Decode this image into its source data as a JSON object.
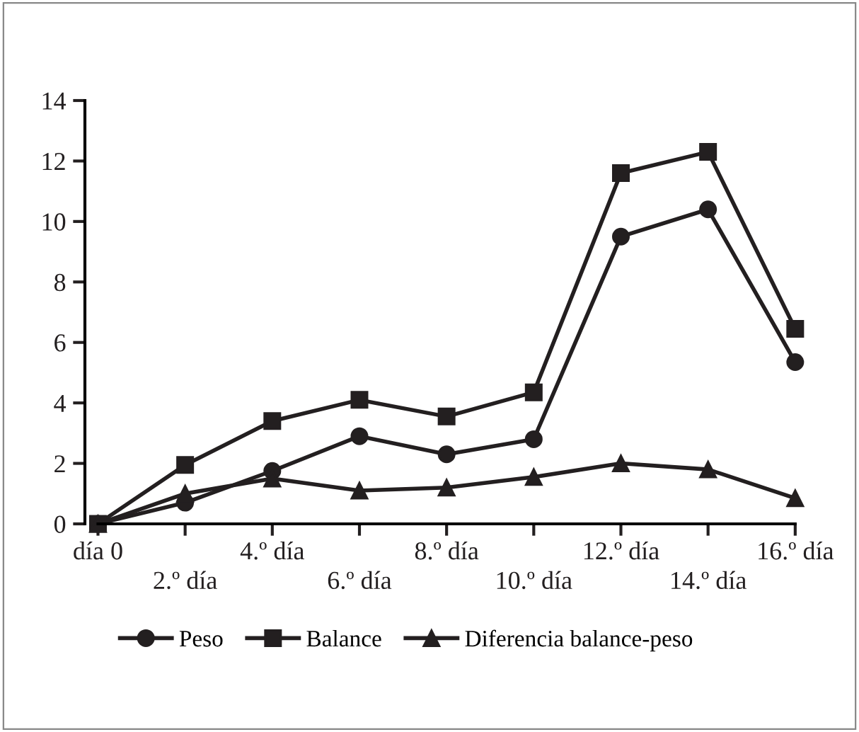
{
  "chart_data": {
    "type": "line",
    "categories": [
      "día 0",
      "2.º día",
      "4.º día",
      "6.º día",
      "8.º día",
      "10.º día",
      "12.º día",
      "14.º día",
      "16.º día"
    ],
    "series": [
      {
        "name": "Peso",
        "color": "#231f20",
        "marker": "circle",
        "values": [
          0,
          0.7,
          1.75,
          2.9,
          2.3,
          2.8,
          9.5,
          10.4,
          5.35
        ]
      },
      {
        "name": "Balance",
        "color": "#231f20",
        "marker": "square",
        "values": [
          0,
          1.95,
          3.4,
          4.1,
          3.55,
          4.35,
          11.6,
          12.3,
          6.45
        ]
      },
      {
        "name": "Diferencia balance-peso",
        "color": "#231f20",
        "marker": "triangle",
        "values": [
          0,
          1.0,
          1.5,
          1.1,
          1.2,
          1.55,
          2.0,
          1.8,
          0.85
        ]
      }
    ],
    "ylim": [
      0,
      14
    ],
    "yticks": [
      0,
      2,
      4,
      6,
      8,
      10,
      12,
      14
    ],
    "grid": false,
    "legend": "bottom",
    "line_style": "solid"
  }
}
